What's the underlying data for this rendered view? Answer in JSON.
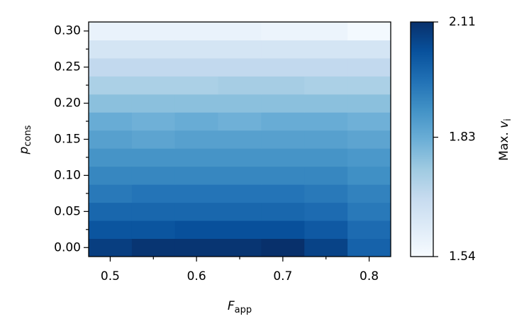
{
  "chart_data": {
    "type": "heatmap",
    "xlabel": "F",
    "xlabel_sub": "app",
    "ylabel": "p",
    "ylabel_sub": "cons",
    "colorbar_label": "Max. ",
    "colorbar_label_var": "v",
    "colorbar_label_sub": "i",
    "colormap": "Blues",
    "x": [
      0.5,
      0.55,
      0.6,
      0.65,
      0.7,
      0.75,
      0.8
    ],
    "y": [
      0,
      0.025,
      0.05,
      0.075,
      0.1,
      0.125,
      0.15,
      0.175,
      0.2,
      0.225,
      0.25,
      0.275,
      0.3
    ],
    "values": [
      [
        2.08,
        2.1,
        2.1,
        2.1,
        2.11,
        2.07,
        2.0
      ],
      [
        2.03,
        2.03,
        2.04,
        2.04,
        2.04,
        2.02,
        1.98
      ],
      [
        1.99,
        1.99,
        1.99,
        1.99,
        1.99,
        1.98,
        1.95
      ],
      [
        1.95,
        1.96,
        1.96,
        1.96,
        1.96,
        1.95,
        1.93
      ],
      [
        1.92,
        1.92,
        1.92,
        1.92,
        1.92,
        1.92,
        1.9
      ],
      [
        1.89,
        1.89,
        1.89,
        1.89,
        1.89,
        1.89,
        1.88
      ],
      [
        1.86,
        1.85,
        1.86,
        1.86,
        1.86,
        1.86,
        1.85
      ],
      [
        1.83,
        1.82,
        1.83,
        1.82,
        1.83,
        1.83,
        1.82
      ],
      [
        1.78,
        1.78,
        1.78,
        1.78,
        1.78,
        1.78,
        1.78
      ],
      [
        1.73,
        1.73,
        1.73,
        1.74,
        1.74,
        1.73,
        1.73
      ],
      [
        1.69,
        1.69,
        1.69,
        1.69,
        1.69,
        1.69,
        1.69
      ],
      [
        1.64,
        1.64,
        1.64,
        1.64,
        1.64,
        1.64,
        1.64
      ],
      [
        1.58,
        1.58,
        1.58,
        1.58,
        1.57,
        1.57,
        1.55
      ]
    ],
    "xlim": [
      0.475,
      0.825
    ],
    "ylim": [
      -0.0125,
      0.3125
    ],
    "xticks": [
      0.5,
      0.6,
      0.7,
      0.8
    ],
    "xminorticks": [
      0.55,
      0.65,
      0.75
    ],
    "yticks": [
      {
        "value": 0,
        "label": "0.00"
      },
      0.05,
      {
        "value": 0.1,
        "label": "0.10"
      },
      0.15,
      {
        "value": 0.2,
        "label": "0.20"
      },
      0.25,
      {
        "value": 0.3,
        "label": "0.30"
      }
    ],
    "yminorticks": [
      0.025,
      0.075,
      0.125,
      0.175,
      0.225,
      0.275
    ],
    "clim": [
      1.54,
      2.11
    ],
    "cticks": [
      1.54,
      1.83,
      2.11
    ]
  }
}
